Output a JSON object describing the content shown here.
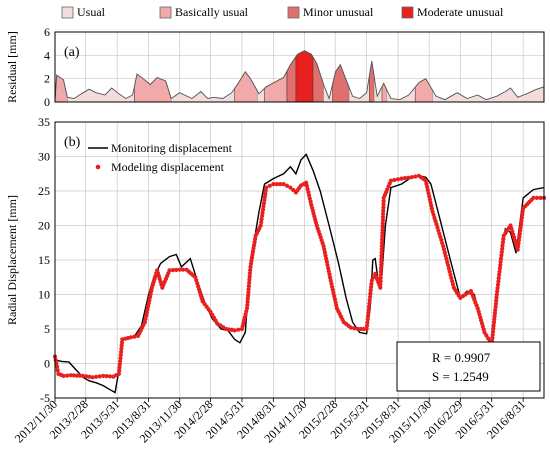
{
  "legend_top": {
    "items": [
      {
        "label": "Usual",
        "color": "#f2dcdc"
      },
      {
        "label": "Basically usual",
        "color": "#f1a9a9"
      },
      {
        "label": "Minor unusual",
        "color": "#e07070"
      },
      {
        "label": "Moderate unusual",
        "color": "#e8201f"
      }
    ]
  },
  "chart_data": [
    {
      "id": "a",
      "type": "area",
      "panel_label": "(a)",
      "ylabel": "Residual [mm]",
      "ylim": [
        0,
        6
      ],
      "yticks": [
        0,
        2,
        4,
        6
      ],
      "grid": true,
      "x_dates": [
        "2012/11/30",
        "2013/2/28",
        "2013/5/31",
        "2013/8/31",
        "2013/11/30",
        "2014/2/28",
        "2014/5/31",
        "2014/8/31",
        "2014/11/30",
        "2015/2/28",
        "2015/5/31",
        "2015/8/31",
        "2015/11/30",
        "2016/2/29",
        "2016/5/31",
        "2016/8/31"
      ],
      "residual": [
        [
          "2012-11-30",
          0.1
        ],
        [
          "2012-12-05",
          2.3
        ],
        [
          "2012-12-25",
          1.9
        ],
        [
          "2013-01-05",
          0.4
        ],
        [
          "2013-01-25",
          0.3
        ],
        [
          "2013-02-15",
          0.7
        ],
        [
          "2013-03-10",
          1.1
        ],
        [
          "2013-03-30",
          0.8
        ],
        [
          "2013-04-25",
          0.6
        ],
        [
          "2013-05-15",
          1.2
        ],
        [
          "2013-06-05",
          0.7
        ],
        [
          "2013-06-25",
          0.3
        ],
        [
          "2013-07-15",
          0.6
        ],
        [
          "2013-07-28",
          2.4
        ],
        [
          "2013-08-15",
          2.0
        ],
        [
          "2013-09-05",
          1.5
        ],
        [
          "2013-09-25",
          2.1
        ],
        [
          "2013-10-20",
          1.8
        ],
        [
          "2013-11-05",
          0.3
        ],
        [
          "2013-11-30",
          0.8
        ],
        [
          "2014-01-05",
          0.3
        ],
        [
          "2014-01-31",
          0.9
        ],
        [
          "2014-02-20",
          0.3
        ],
        [
          "2014-03-10",
          0.4
        ],
        [
          "2014-04-05",
          0.3
        ],
        [
          "2014-05-01",
          0.8
        ],
        [
          "2014-05-20",
          1.6
        ],
        [
          "2014-06-10",
          2.6
        ],
        [
          "2014-06-25",
          2.0
        ],
        [
          "2014-07-20",
          0.7
        ],
        [
          "2014-08-10",
          1.3
        ],
        [
          "2014-09-10",
          1.8
        ],
        [
          "2014-09-30",
          2.1
        ],
        [
          "2014-10-20",
          3.2
        ],
        [
          "2014-11-10",
          4.1
        ],
        [
          "2014-11-30",
          4.4
        ],
        [
          "2014-12-20",
          4.1
        ],
        [
          "2015-01-05",
          3.3
        ],
        [
          "2015-01-25",
          1.5
        ],
        [
          "2015-02-10",
          0.3
        ],
        [
          "2015-03-01",
          2.6
        ],
        [
          "2015-03-15",
          3.2
        ],
        [
          "2015-04-01",
          1.9
        ],
        [
          "2015-04-20",
          0.5
        ],
        [
          "2015-05-10",
          0.3
        ],
        [
          "2015-05-31",
          0.8
        ],
        [
          "2015-06-15",
          3.5
        ],
        [
          "2015-07-01",
          0.5
        ],
        [
          "2015-07-20",
          1.6
        ],
        [
          "2015-08-10",
          0.3
        ],
        [
          "2015-09-05",
          0.2
        ],
        [
          "2015-10-01",
          0.6
        ],
        [
          "2015-11-01",
          1.7
        ],
        [
          "2015-11-20",
          2.0
        ],
        [
          "2015-12-20",
          0.5
        ],
        [
          "2016-01-15",
          0.2
        ],
        [
          "2016-02-20",
          0.8
        ],
        [
          "2016-03-20",
          0.3
        ],
        [
          "2016-04-20",
          0.6
        ],
        [
          "2016-05-15",
          0.2
        ],
        [
          "2016-06-15",
          0.5
        ],
        [
          "2016-07-10",
          0.9
        ],
        [
          "2016-07-25",
          1.2
        ],
        [
          "2016-08-15",
          0.4
        ],
        [
          "2016-09-10",
          0.7
        ],
        [
          "2016-10-10",
          1.1
        ],
        [
          "2016-10-31",
          1.3
        ]
      ],
      "status_segments": [
        {
          "start": "2012-11-30",
          "end": "2013-01-05",
          "status": 1
        },
        {
          "start": "2013-01-05",
          "end": "2013-07-20",
          "status": 0
        },
        {
          "start": "2013-07-20",
          "end": "2013-11-05",
          "status": 1
        },
        {
          "start": "2013-11-05",
          "end": "2014-05-10",
          "status": 0
        },
        {
          "start": "2014-05-10",
          "end": "2014-07-15",
          "status": 1
        },
        {
          "start": "2014-07-15",
          "end": "2014-08-05",
          "status": 0
        },
        {
          "start": "2014-08-05",
          "end": "2014-10-10",
          "status": 1
        },
        {
          "start": "2014-10-10",
          "end": "2014-11-05",
          "status": 2
        },
        {
          "start": "2014-11-05",
          "end": "2014-12-25",
          "status": 3
        },
        {
          "start": "2014-12-25",
          "end": "2015-01-25",
          "status": 2
        },
        {
          "start": "2015-01-25",
          "end": "2015-02-20",
          "status": 0
        },
        {
          "start": "2015-02-20",
          "end": "2015-04-10",
          "status": 2
        },
        {
          "start": "2015-04-10",
          "end": "2015-06-08",
          "status": 0
        },
        {
          "start": "2015-06-08",
          "end": "2015-06-22",
          "status": 2
        },
        {
          "start": "2015-06-22",
          "end": "2015-07-15",
          "status": 0
        },
        {
          "start": "2015-07-15",
          "end": "2015-07-28",
          "status": 1
        },
        {
          "start": "2015-07-28",
          "end": "2015-10-20",
          "status": 0
        },
        {
          "start": "2015-10-20",
          "end": "2015-12-10",
          "status": 1
        },
        {
          "start": "2015-12-10",
          "end": "2016-10-31",
          "status": 0
        }
      ]
    },
    {
      "id": "b",
      "type": "line",
      "panel_label": "(b)",
      "ylabel": "Radial Displacement [mm]",
      "ylim": [
        -5,
        35
      ],
      "yticks": [
        -5,
        0,
        5,
        10,
        15,
        20,
        25,
        30,
        35
      ],
      "grid": true,
      "legend_position": "top-left",
      "series": [
        {
          "name": "Monitoring displacement",
          "style": "line",
          "color": "#000000",
          "points": [
            [
              "2012-11-30",
              0.5
            ],
            [
              "2012-12-20",
              0.3
            ],
            [
              "2013-01-10",
              0.2
            ],
            [
              "2013-02-01",
              -1.0
            ],
            [
              "2013-02-20",
              -2.0
            ],
            [
              "2013-03-10",
              -2.5
            ],
            [
              "2013-03-31",
              -2.8
            ],
            [
              "2013-04-20",
              -3.2
            ],
            [
              "2013-05-10",
              -3.8
            ],
            [
              "2013-05-25",
              -4.2
            ],
            [
              "2013-06-05",
              -1.0
            ],
            [
              "2013-06-15",
              3.5
            ],
            [
              "2013-07-01",
              3.6
            ],
            [
              "2013-07-20",
              3.9
            ],
            [
              "2013-08-10",
              5.5
            ],
            [
              "2013-08-31",
              10.0
            ],
            [
              "2013-09-15",
              12.5
            ],
            [
              "2013-10-05",
              14.5
            ],
            [
              "2013-10-31",
              15.5
            ],
            [
              "2013-11-20",
              15.8
            ],
            [
              "2013-12-05",
              14.0
            ],
            [
              "2013-12-31",
              15.2
            ],
            [
              "2014-01-20",
              12.0
            ],
            [
              "2014-02-10",
              9.0
            ],
            [
              "2014-03-05",
              6.5
            ],
            [
              "2014-03-31",
              5.0
            ],
            [
              "2014-04-20",
              4.8
            ],
            [
              "2014-05-10",
              3.5
            ],
            [
              "2014-05-25",
              3.0
            ],
            [
              "2014-06-10",
              4.5
            ],
            [
              "2014-06-25",
              15.0
            ],
            [
              "2014-07-10",
              19.0
            ],
            [
              "2014-07-20",
              22.0
            ],
            [
              "2014-08-05",
              26.0
            ],
            [
              "2014-08-31",
              26.8
            ],
            [
              "2014-09-30",
              27.5
            ],
            [
              "2014-10-20",
              28.5
            ],
            [
              "2014-11-05",
              27.5
            ],
            [
              "2014-11-20",
              29.5
            ],
            [
              "2014-12-05",
              30.3
            ],
            [
              "2014-12-25",
              28.0
            ],
            [
              "2015-01-15",
              25.0
            ],
            [
              "2015-02-10",
              20.0
            ],
            [
              "2015-03-10",
              14.5
            ],
            [
              "2015-04-01",
              9.5
            ],
            [
              "2015-04-20",
              6.0
            ],
            [
              "2015-05-10",
              4.5
            ],
            [
              "2015-05-31",
              4.3
            ],
            [
              "2015-06-10",
              8.0
            ],
            [
              "2015-06-18",
              15.0
            ],
            [
              "2015-06-25",
              15.2
            ],
            [
              "2015-07-05",
              11.5
            ],
            [
              "2015-07-15",
              13.0
            ],
            [
              "2015-07-25",
              20.0
            ],
            [
              "2015-08-10",
              25.5
            ],
            [
              "2015-09-10",
              26.0
            ],
            [
              "2015-10-10",
              27.0
            ],
            [
              "2015-10-31",
              27.2
            ],
            [
              "2015-11-20",
              27.0
            ],
            [
              "2015-12-05",
              26.0
            ],
            [
              "2015-12-31",
              21.0
            ],
            [
              "2016-01-31",
              15.0
            ],
            [
              "2016-02-29",
              9.5
            ],
            [
              "2016-03-20",
              10.5
            ],
            [
              "2016-04-10",
              10.0
            ],
            [
              "2016-04-30",
              6.0
            ],
            [
              "2016-05-20",
              3.5
            ],
            [
              "2016-05-31",
              2.7
            ],
            [
              "2016-06-20",
              12.0
            ],
            [
              "2016-07-10",
              19.5
            ],
            [
              "2016-07-25",
              19.0
            ],
            [
              "2016-08-10",
              16.0
            ],
            [
              "2016-08-31",
              24.0
            ],
            [
              "2016-09-30",
              25.2
            ],
            [
              "2016-10-31",
              25.5
            ]
          ]
        },
        {
          "name": "Modeling displacement",
          "style": "dots",
          "color": "#e8201f",
          "points": [
            [
              "2012-11-30",
              1.0
            ],
            [
              "2012-12-10",
              -1.5
            ],
            [
              "2012-12-25",
              -1.8
            ],
            [
              "2013-01-15",
              -1.7
            ],
            [
              "2013-02-20",
              -1.8
            ],
            [
              "2013-03-20",
              -2.0
            ],
            [
              "2013-04-20",
              -1.8
            ],
            [
              "2013-05-20",
              -1.9
            ],
            [
              "2013-06-05",
              -1.5
            ],
            [
              "2013-06-15",
              3.5
            ],
            [
              "2013-07-10",
              3.8
            ],
            [
              "2013-07-31",
              4.0
            ],
            [
              "2013-08-20",
              6.0
            ],
            [
              "2013-09-10",
              11.0
            ],
            [
              "2013-09-25",
              13.5
            ],
            [
              "2013-10-10",
              11.0
            ],
            [
              "2013-10-31",
              13.5
            ],
            [
              "2013-11-30",
              13.6
            ],
            [
              "2013-12-20",
              13.6
            ],
            [
              "2014-01-15",
              12.5
            ],
            [
              "2014-02-05",
              9.0
            ],
            [
              "2014-02-28",
              7.5
            ],
            [
              "2014-03-20",
              5.8
            ],
            [
              "2014-04-15",
              5.0
            ],
            [
              "2014-05-10",
              4.8
            ],
            [
              "2014-05-31",
              5.0
            ],
            [
              "2014-06-15",
              8.0
            ],
            [
              "2014-06-25",
              14.0
            ],
            [
              "2014-07-10",
              18.5
            ],
            [
              "2014-07-25",
              20.0
            ],
            [
              "2014-08-10",
              25.5
            ],
            [
              "2014-08-31",
              26.0
            ],
            [
              "2014-09-30",
              26.0
            ],
            [
              "2014-10-20",
              25.5
            ],
            [
              "2014-11-05",
              24.8
            ],
            [
              "2014-11-20",
              25.8
            ],
            [
              "2014-12-05",
              26.2
            ],
            [
              "2014-12-20",
              23.0
            ],
            [
              "2015-01-05",
              20.0
            ],
            [
              "2015-01-25",
              17.0
            ],
            [
              "2015-02-15",
              12.0
            ],
            [
              "2015-03-05",
              8.0
            ],
            [
              "2015-03-25",
              6.0
            ],
            [
              "2015-04-15",
              5.2
            ],
            [
              "2015-05-05",
              5.0
            ],
            [
              "2015-05-31",
              5.0
            ],
            [
              "2015-06-15",
              12.0
            ],
            [
              "2015-06-25",
              13.0
            ],
            [
              "2015-07-10",
              11.0
            ],
            [
              "2015-07-20",
              24.0
            ],
            [
              "2015-08-10",
              26.5
            ],
            [
              "2015-09-10",
              26.8
            ],
            [
              "2015-10-10",
              27.0
            ],
            [
              "2015-10-31",
              27.2
            ],
            [
              "2015-11-20",
              26.5
            ],
            [
              "2015-12-10",
              22.0
            ],
            [
              "2016-01-10",
              17.0
            ],
            [
              "2016-02-10",
              11.0
            ],
            [
              "2016-02-29",
              9.5
            ],
            [
              "2016-03-31",
              10.5
            ],
            [
              "2016-04-20",
              8.0
            ],
            [
              "2016-05-10",
              4.5
            ],
            [
              "2016-05-31",
              2.8
            ],
            [
              "2016-06-15",
              10.0
            ],
            [
              "2016-07-05",
              18.5
            ],
            [
              "2016-07-25",
              20.0
            ],
            [
              "2016-08-15",
              16.5
            ],
            [
              "2016-08-31",
              22.5
            ],
            [
              "2016-09-30",
              24.0
            ],
            [
              "2016-10-31",
              24.0
            ]
          ]
        }
      ],
      "stats": {
        "r": "R = 0.9907",
        "s": "S = 1.2549"
      }
    }
  ]
}
